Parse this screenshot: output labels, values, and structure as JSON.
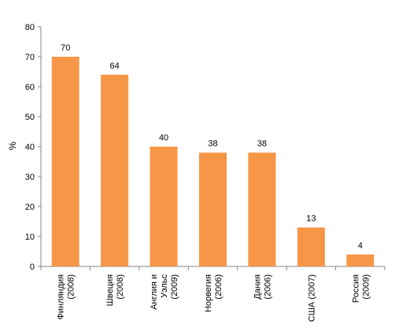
{
  "chart_data": {
    "type": "bar",
    "ylabel": "%",
    "ylim": [
      0,
      80
    ],
    "yticks": [
      "0",
      "10",
      "20",
      "30",
      "40",
      "50",
      "60",
      "70",
      "80"
    ],
    "grid": false,
    "legend": "none",
    "bar_color": "#F79646",
    "categories": [
      [
        "Финляндия",
        "(2008)"
      ],
      [
        "Швеция",
        "(2008)"
      ],
      [
        "Англия и",
        "Уэльс",
        "(2009)"
      ],
      [
        "Норвегия",
        "(2006)"
      ],
      [
        "Дания",
        "(2006)"
      ],
      [
        "США (2007)"
      ],
      [
        "Россия",
        "(2009)"
      ]
    ],
    "values": [
      70,
      64,
      40,
      38,
      38,
      13,
      4
    ],
    "data_labels": [
      "70",
      "64",
      "40",
      "38",
      "38",
      "13",
      "4"
    ]
  }
}
